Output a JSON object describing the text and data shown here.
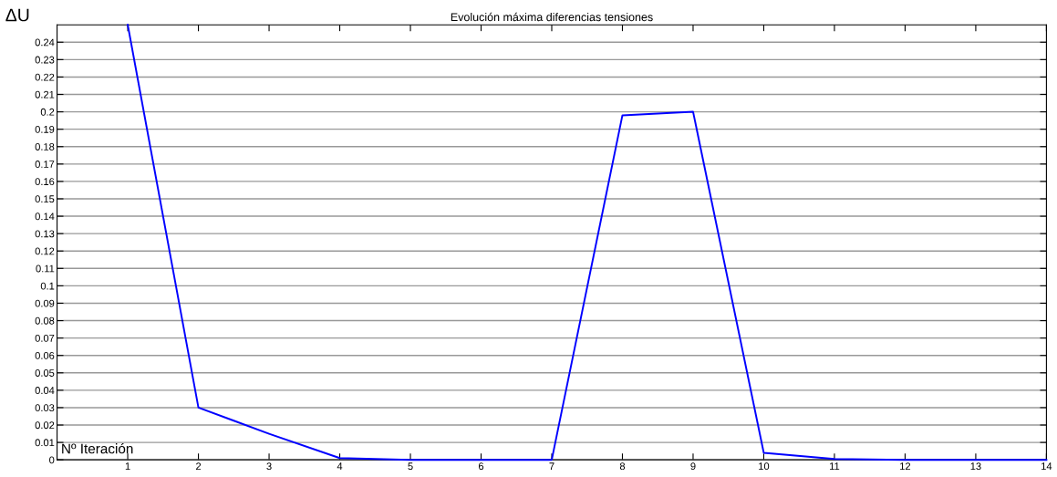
{
  "chart_data": {
    "type": "line",
    "title": "Evolución máxima diferencias tensiones",
    "xlabel": "Nº Iteración",
    "ylabel": "ΔU",
    "x": [
      1,
      2,
      3,
      4,
      5,
      6,
      7,
      8,
      9,
      10,
      11,
      12,
      13,
      14
    ],
    "series": [
      {
        "color": "#0000ff",
        "values": [
          0.25,
          0.03,
          0.015,
          0.001,
          0,
          0,
          0,
          0.198,
          0.2,
          0.004,
          0.0005,
          0,
          0,
          0
        ]
      }
    ],
    "xlim": [
      0,
      14
    ],
    "xticks": [
      1,
      2,
      3,
      4,
      5,
      6,
      7,
      8,
      9,
      10,
      11,
      12,
      13,
      14
    ],
    "ylim": [
      0,
      0.25
    ],
    "yticks": [
      0,
      0.01,
      0.02,
      0.03,
      0.04,
      0.05,
      0.06,
      0.07,
      0.08,
      0.09,
      0.1,
      0.11,
      0.12,
      0.13,
      0.14,
      0.15,
      0.16,
      0.17,
      0.18,
      0.19,
      0.2,
      0.21,
      0.22,
      0.23,
      0.24
    ],
    "grid": "y",
    "marker": "none",
    "line_style": "solid"
  }
}
